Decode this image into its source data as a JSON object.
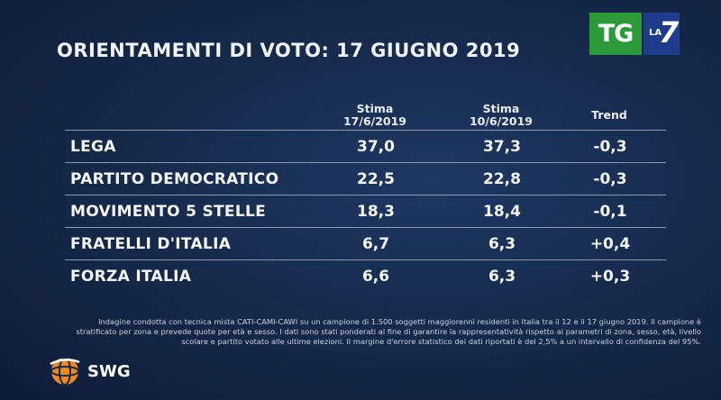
{
  "title": "ORIENTAMENTI DI VOTO: 17 GIUGNO 2019",
  "logo": {
    "tg": "TG",
    "la": "LA",
    "seven": "7"
  },
  "columns": [
    {
      "line1": "Stima",
      "line2": "17/6/2019"
    },
    {
      "line1": "Stima",
      "line2": "10/6/2019"
    },
    {
      "line1": "Trend",
      "line2": ""
    }
  ],
  "rows": [
    {
      "party": "LEGA",
      "stima_17": "37,0",
      "stima_10": "37,3",
      "trend": "-0,3"
    },
    {
      "party": "PARTITO DEMOCRATICO",
      "stima_17": "22,5",
      "stima_10": "22,8",
      "trend": "-0,3"
    },
    {
      "party": "MOVIMENTO 5 STELLE",
      "stima_17": "18,3",
      "stima_10": "18,4",
      "trend": "-0,1"
    },
    {
      "party": "FRATELLI D'ITALIA",
      "stima_17": "6,7",
      "stima_10": "6,3",
      "trend": "+0,4"
    },
    {
      "party": "FORZA ITALIA",
      "stima_17": "6,6",
      "stima_10": "6,3",
      "trend": "+0,3"
    }
  ],
  "footnote": {
    "line1": "Indagine condotta con tecnica mista CATI-CAMI-CAWI su un campione di 1.500 soggetti maggiorenni residenti in Italia tra il 12 e il 17 giugno 2019. Il campione è",
    "line2": "stratificato per zona e prevede quote per età e sesso. I dati sono stati ponderati al fine di garantire la rappresentatività rispetto ai parametri di zona, sesso, età, livello",
    "line3": "scolare e partito votato alle ultime elezioni. Il margine d'errore statistico dei dati riportati è del 2,5% a un intervallo di confidenza del 95%."
  },
  "source_logo": "SWG",
  "colors": {
    "background": "#142848",
    "tg_green": "#2a9a3a",
    "la7_blue": "#1f3b8c",
    "swg_orange": "#f08a1c"
  }
}
